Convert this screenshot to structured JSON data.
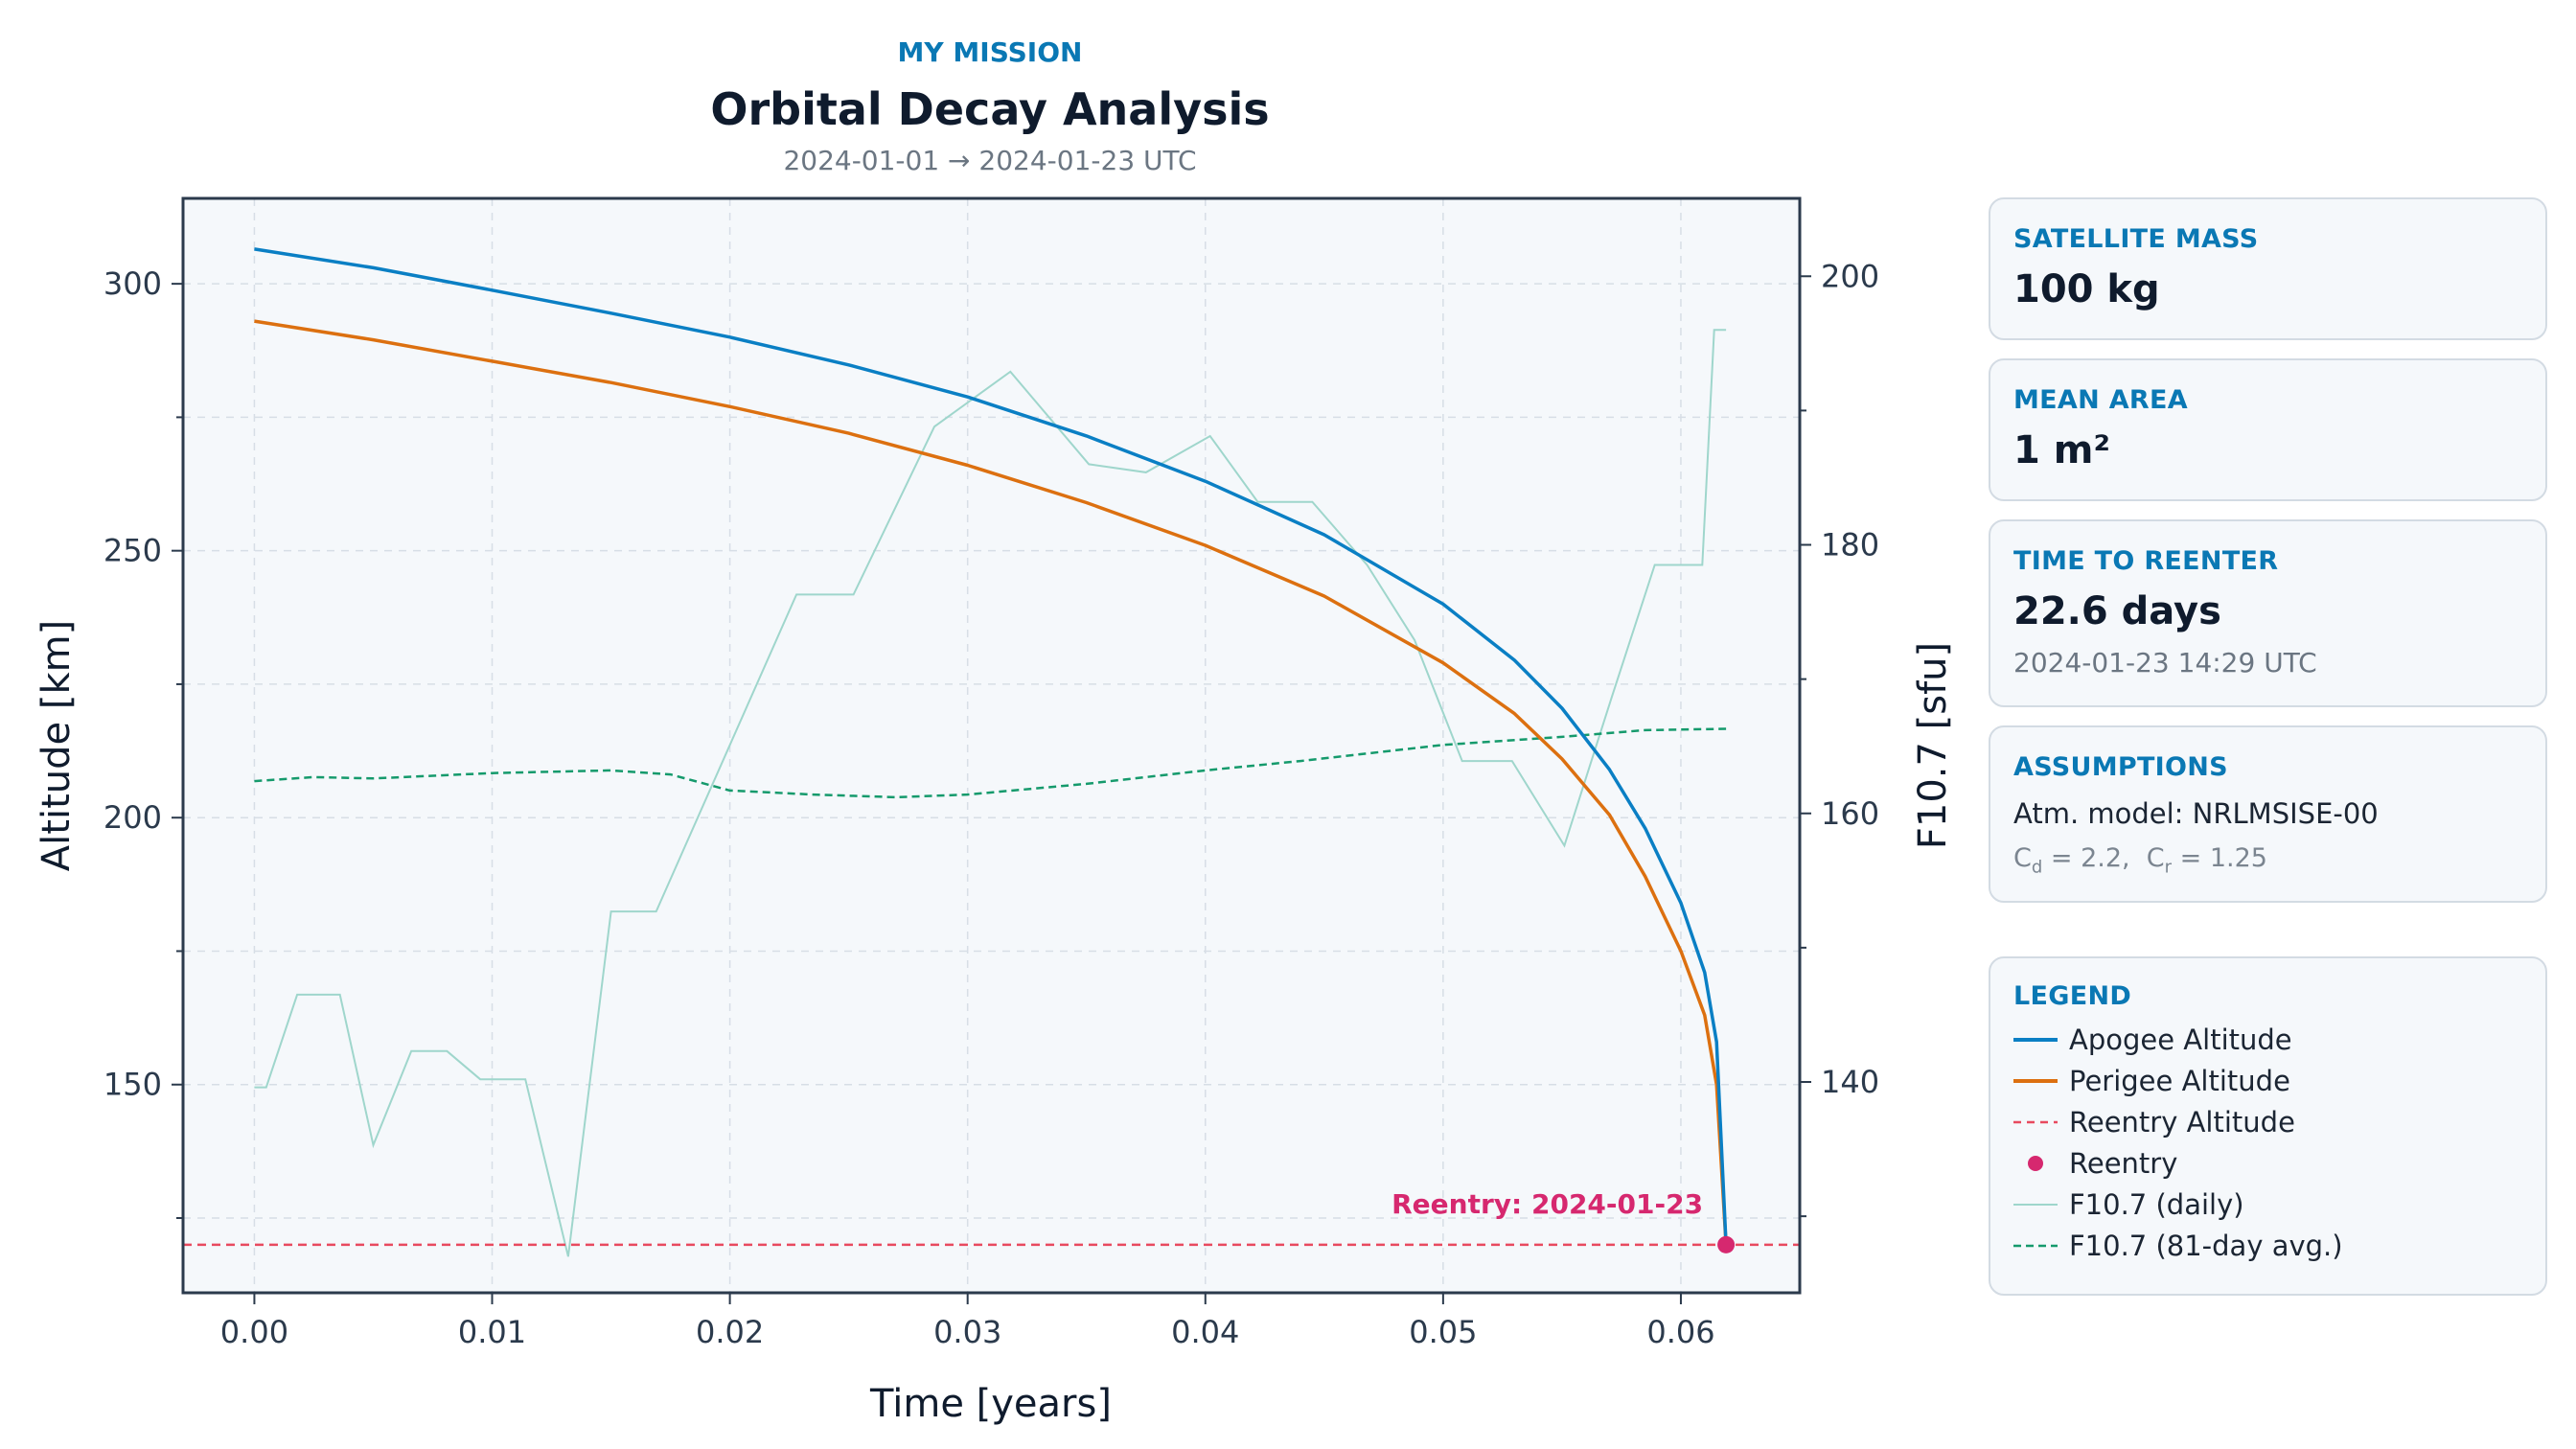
{
  "header": {
    "mission": "MY MISSION",
    "title": "Orbital Decay Analysis",
    "subtitle": "2024-01-01 → 2024-01-23 UTC"
  },
  "cards": {
    "mass": {
      "label": "SATELLITE MASS",
      "value": "100 kg"
    },
    "area": {
      "label": "MEAN AREA",
      "value": "1 m²"
    },
    "reenter": {
      "label": "TIME TO REENTER",
      "value": "22.6 days",
      "date": "2024-01-23 14:29 UTC"
    },
    "assumptions": {
      "label": "ASSUMPTIONS",
      "model": "Atm. model: NRLMSISE-00",
      "cd_label": "C",
      "cd_sub": "d",
      "cd_value": " = 2.2,  ",
      "cr_label": "C",
      "cr_sub": "r",
      "cr_value": " = 1.25"
    },
    "legend": {
      "label": "LEGEND"
    }
  },
  "colors": {
    "apogee": "#0a7fc4",
    "perigee": "#dc7010",
    "reentry_line": "#e84a5f",
    "reentry_point": "#d6286f",
    "f107_daily": "#9fd6cc",
    "f107_avg": "#159a6c",
    "accent": "#0a78b4"
  },
  "chart_data": {
    "type": "line",
    "xlabel": "Time [years]",
    "ylabel": "Altitude [km]",
    "y2label": "F10.7 [sfu]",
    "xlim": [
      -0.003,
      0.065
    ],
    "ylim": [
      111,
      316
    ],
    "y2lim": [
      124.3,
      205.8
    ],
    "xticks": [
      0.0,
      0.01,
      0.02,
      0.03,
      0.04,
      0.05,
      0.06
    ],
    "xtick_labels": [
      "0.00",
      "0.01",
      "0.02",
      "0.03",
      "0.04",
      "0.05",
      "0.06"
    ],
    "yticks": [
      150,
      200,
      250,
      300
    ],
    "y2ticks": [
      140,
      160,
      180,
      200
    ],
    "grid": true,
    "reentry_altitude": 120,
    "reentry_point": {
      "x": 0.0619,
      "y": 120,
      "label": "Reentry: 2024-01-23"
    },
    "series": [
      {
        "name": "Apogee Altitude",
        "axis": "left",
        "x": [
          0.0,
          0.005,
          0.01,
          0.015,
          0.02,
          0.025,
          0.03,
          0.035,
          0.04,
          0.045,
          0.05,
          0.053,
          0.055,
          0.057,
          0.0585,
          0.06,
          0.061,
          0.0615,
          0.0619
        ],
        "y": [
          306.5,
          303.0,
          298.8,
          294.5,
          290.0,
          284.8,
          278.8,
          271.5,
          263.0,
          253.0,
          240.0,
          229.5,
          220.5,
          209.0,
          198.0,
          184.0,
          171.0,
          158.0,
          120.0
        ]
      },
      {
        "name": "Perigee Altitude",
        "axis": "left",
        "x": [
          0.0,
          0.005,
          0.01,
          0.015,
          0.02,
          0.025,
          0.03,
          0.035,
          0.04,
          0.045,
          0.05,
          0.053,
          0.055,
          0.057,
          0.0585,
          0.06,
          0.061,
          0.0615,
          0.0619
        ],
        "y": [
          293.0,
          289.5,
          285.5,
          281.5,
          277.0,
          272.0,
          266.0,
          259.0,
          251.0,
          241.5,
          229.0,
          219.5,
          211.0,
          200.5,
          189.0,
          175.0,
          163.0,
          150.0,
          120.0
        ]
      },
      {
        "name": "Reentry Altitude",
        "style": "dashed"
      },
      {
        "name": "Reentry",
        "style": "point"
      },
      {
        "name": "F10.7 (daily)",
        "axis": "right",
        "x": [
          0.0,
          0.0005,
          0.0018,
          0.0036,
          0.005,
          0.0066,
          0.0081,
          0.0095,
          0.0114,
          0.0132,
          0.015,
          0.0169,
          0.0228,
          0.0252,
          0.0286,
          0.0318,
          0.0351,
          0.0375,
          0.0402,
          0.0422,
          0.0445,
          0.0468,
          0.0488,
          0.0508,
          0.0529,
          0.0551,
          0.0571,
          0.0589,
          0.0609,
          0.0614,
          0.0619
        ],
        "y": [
          139.6,
          139.6,
          146.5,
          146.5,
          135.3,
          142.3,
          142.3,
          140.2,
          140.2,
          127.0,
          152.7,
          152.7,
          176.3,
          176.3,
          188.8,
          192.9,
          186.0,
          185.4,
          188.1,
          183.2,
          183.2,
          178.5,
          172.9,
          163.9,
          163.9,
          157.6,
          168.7,
          178.5,
          178.5,
          196.0,
          196.0
        ]
      },
      {
        "name": "F10.7 (81-day avg.)",
        "axis": "right",
        "x": [
          0.0,
          0.0025,
          0.005,
          0.0075,
          0.01,
          0.0125,
          0.015,
          0.0175,
          0.02,
          0.0235,
          0.027,
          0.03,
          0.035,
          0.04,
          0.044,
          0.05,
          0.055,
          0.0585,
          0.0619
        ],
        "y": [
          162.4,
          162.7,
          162.6,
          162.8,
          163.0,
          163.1,
          163.2,
          162.9,
          161.7,
          161.4,
          161.2,
          161.4,
          162.2,
          163.2,
          163.9,
          165.1,
          165.7,
          166.2,
          166.3
        ]
      }
    ]
  }
}
